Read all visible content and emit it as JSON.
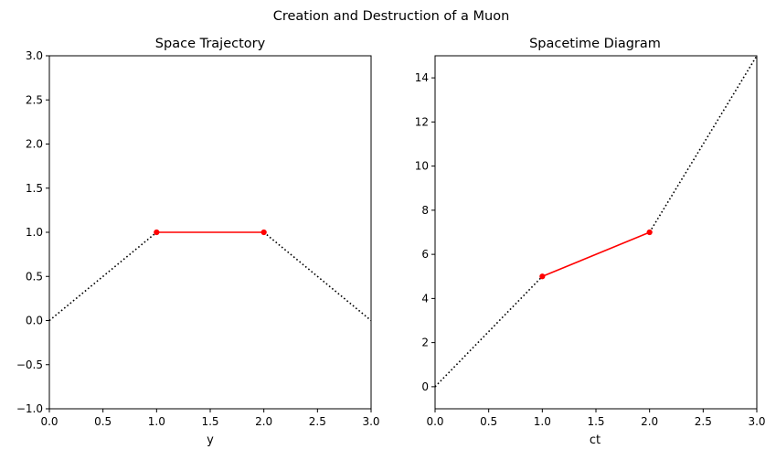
{
  "figure": {
    "suptitle": "Creation and Destruction of a Muon"
  },
  "chart_data": [
    {
      "type": "line",
      "title": "Space Trajectory",
      "xlabel": "y",
      "ylabel": "",
      "xlim": [
        0,
        3
      ],
      "ylim": [
        -1,
        3
      ],
      "xticks": [
        0,
        0.5,
        1,
        1.5,
        2,
        2.5,
        3
      ],
      "xtick_labels": [
        "0.0",
        "0.5",
        "1.0",
        "1.5",
        "2.0",
        "2.5",
        "3.0"
      ],
      "yticks": [
        -1,
        -0.5,
        0,
        0.5,
        1,
        1.5,
        2,
        2.5,
        3
      ],
      "ytick_labels": [
        "−1.0",
        "−0.5",
        "0.0",
        "0.5",
        "1.0",
        "1.5",
        "2.0",
        "2.5",
        "3.0"
      ],
      "grid": false,
      "series": [
        {
          "style": "dotted",
          "color": "#000000",
          "x": [
            0,
            1
          ],
          "y": [
            0,
            1
          ],
          "markers": false
        },
        {
          "style": "dotted",
          "color": "#000000",
          "x": [
            2,
            3
          ],
          "y": [
            1,
            0
          ],
          "markers": false
        },
        {
          "style": "solid",
          "color": "#ff0000",
          "x": [
            1,
            2
          ],
          "y": [
            1,
            1
          ],
          "markers": true
        }
      ]
    },
    {
      "type": "line",
      "title": "Spacetime Diagram",
      "xlabel": "ct",
      "ylabel": "",
      "xlim": [
        0,
        3
      ],
      "ylim": [
        -1,
        15
      ],
      "xticks": [
        0,
        0.5,
        1,
        1.5,
        2,
        2.5,
        3
      ],
      "xtick_labels": [
        "0.0",
        "0.5",
        "1.0",
        "1.5",
        "2.0",
        "2.5",
        "3.0"
      ],
      "yticks": [
        0,
        2,
        4,
        6,
        8,
        10,
        12,
        14
      ],
      "ytick_labels": [
        "0",
        "2",
        "4",
        "6",
        "8",
        "10",
        "12",
        "14"
      ],
      "grid": false,
      "series": [
        {
          "style": "dotted",
          "color": "#000000",
          "x": [
            0,
            1
          ],
          "y": [
            0,
            5
          ],
          "markers": false
        },
        {
          "style": "dotted",
          "color": "#000000",
          "x": [
            2,
            3
          ],
          "y": [
            7,
            15
          ],
          "markers": false
        },
        {
          "style": "solid",
          "color": "#ff0000",
          "x": [
            1,
            2
          ],
          "y": [
            5,
            7
          ],
          "markers": true
        }
      ]
    }
  ]
}
